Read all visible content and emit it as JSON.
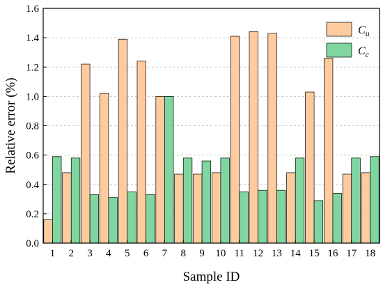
{
  "chart_data": {
    "type": "bar",
    "title": "",
    "xlabel": "Sample ID",
    "ylabel": "Relative error (%)",
    "ylim": [
      0,
      1.6
    ],
    "yticks": [
      "0.0",
      "0.2",
      "0.4",
      "0.6",
      "0.8",
      "1.0",
      "1.2",
      "1.4",
      "1.6"
    ],
    "grid": "horizontal dashed",
    "legend_position": "top-right",
    "categories": [
      "1",
      "2",
      "3",
      "4",
      "5",
      "6",
      "7",
      "8",
      "9",
      "10",
      "11",
      "12",
      "13",
      "14",
      "15",
      "16",
      "17",
      "18"
    ],
    "series": [
      {
        "name": "Cu",
        "label_main": "C",
        "label_sub": "u",
        "color": "#fdcb9e",
        "values": [
          0.16,
          0.48,
          1.22,
          1.02,
          1.39,
          1.24,
          1.0,
          0.47,
          0.47,
          0.48,
          1.41,
          1.44,
          1.43,
          0.48,
          1.03,
          1.26,
          0.47,
          0.48
        ]
      },
      {
        "name": "Cc",
        "label_main": "C",
        "label_sub": "c",
        "color": "#7fd6a0",
        "values": [
          0.59,
          0.58,
          0.33,
          0.31,
          0.35,
          0.33,
          1.0,
          0.58,
          0.56,
          0.58,
          0.35,
          0.36,
          0.36,
          0.58,
          0.29,
          0.34,
          0.58,
          0.59
        ]
      }
    ]
  }
}
